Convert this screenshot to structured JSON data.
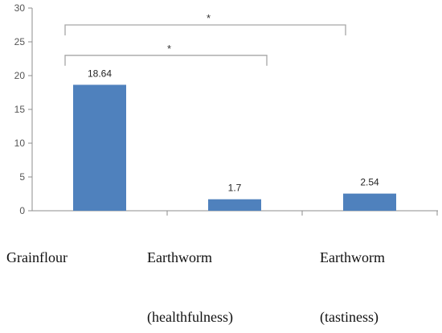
{
  "chart_data": {
    "type": "bar",
    "categories": [
      [
        "Grainflour",
        ""
      ],
      [
        "Earthworm",
        "(healthfulness)"
      ],
      [
        "Earthworm",
        "(tastiness)"
      ]
    ],
    "values": [
      18.64,
      1.7,
      2.54
    ],
    "data_labels": [
      "18.64",
      "1.7",
      "2.54"
    ],
    "ylim": [
      0,
      30
    ],
    "yticks": [
      0,
      5,
      10,
      15,
      20,
      25,
      30
    ],
    "bar_color": "#4F81BD",
    "grid": false,
    "legend": "none",
    "significance": [
      {
        "from": 0,
        "to": 1,
        "label": "*",
        "level": 23
      },
      {
        "from": 0,
        "to": 2,
        "label": "*",
        "level": 27.5
      }
    ]
  }
}
